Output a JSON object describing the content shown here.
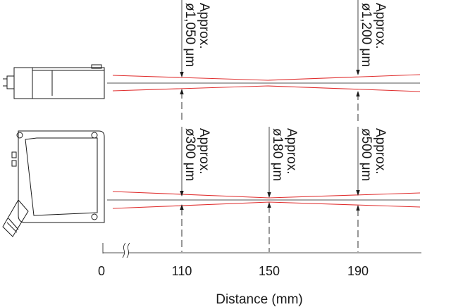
{
  "top_row": {
    "annotations": [
      {
        "line1": "Approx.",
        "line2": "ø1,050 μm"
      },
      {
        "line1": "Approx.",
        "line2": "ø1,200 μm"
      }
    ]
  },
  "bottom_row": {
    "annotations": [
      {
        "line1": "Approx.",
        "line2": "ø300 μm"
      },
      {
        "line1": "Approx.",
        "line2": "ø180 μm"
      },
      {
        "line1": "Approx.",
        "line2": "ø500 μm"
      }
    ]
  },
  "axis": {
    "ticks": [
      "0",
      "110",
      "150",
      "190"
    ],
    "title": "Distance (mm)"
  },
  "colors": {
    "beam": "#e03030",
    "line": "#1a1a1a"
  }
}
